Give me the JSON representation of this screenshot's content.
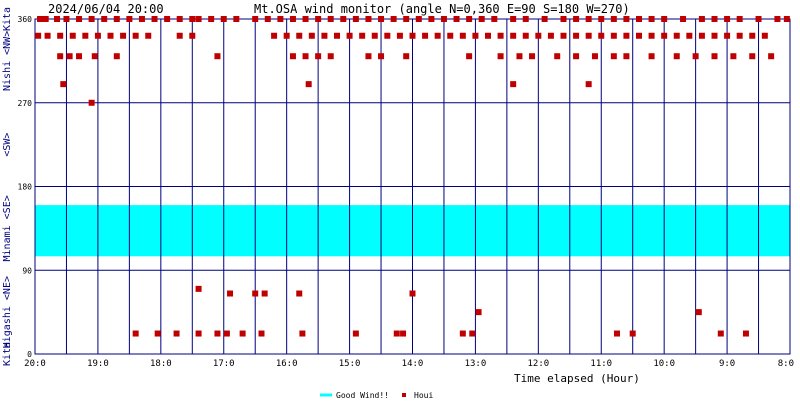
{
  "chart_data": {
    "type": "scatter",
    "header_date": "2024/06/04 20:00",
    "title": "Mt.OSA wind monitor (angle N=0,360 E=90 S=180 W=270)",
    "xlabel": "Time elapsed (Hour)",
    "x_ticks": [
      "20:0",
      "19:0",
      "18:0",
      "17:0",
      "16:0",
      "15:0",
      "14:0",
      "13:0",
      "12:0",
      "11:0",
      "10:0",
      "9:0",
      "8:0"
    ],
    "y_ticks": [
      0,
      90,
      180,
      270,
      360
    ],
    "ylim": [
      0,
      360
    ],
    "xlim_hours_elapsed": [
      0,
      12
    ],
    "y_axis_labels": [
      {
        "text": "Kita",
        "at": 360
      },
      {
        "text": "Nishi <NW>",
        "at": 315
      },
      {
        "text": "<SW>",
        "at": 225
      },
      {
        "text": "Minami <SE>",
        "at": 135
      },
      {
        "text": "Higashi <NE>",
        "at": 45
      },
      {
        "text": "Kita",
        "at": 0
      }
    ],
    "good_wind": {
      "name": "Good Wind!!",
      "from_deg": 105,
      "to_deg": 160,
      "color": "#00ffff"
    },
    "series": [
      {
        "name": "Houi",
        "color": "#c00000",
        "points": [
          [
            0.08,
            360
          ],
          [
            0.17,
            360
          ],
          [
            0.35,
            360
          ],
          [
            0.5,
            360
          ],
          [
            0.7,
            360
          ],
          [
            0.9,
            360
          ],
          [
            1.1,
            360
          ],
          [
            1.3,
            360
          ],
          [
            1.5,
            360
          ],
          [
            1.7,
            360
          ],
          [
            1.9,
            360
          ],
          [
            2.1,
            360
          ],
          [
            2.3,
            360
          ],
          [
            2.5,
            360
          ],
          [
            2.6,
            360
          ],
          [
            2.8,
            360
          ],
          [
            3.0,
            360
          ],
          [
            3.2,
            360
          ],
          [
            3.5,
            360
          ],
          [
            3.7,
            360
          ],
          [
            3.9,
            360
          ],
          [
            4.1,
            360
          ],
          [
            4.3,
            360
          ],
          [
            4.5,
            360
          ],
          [
            4.7,
            360
          ],
          [
            4.9,
            360
          ],
          [
            5.1,
            360
          ],
          [
            5.3,
            360
          ],
          [
            5.5,
            360
          ],
          [
            5.7,
            360
          ],
          [
            5.9,
            360
          ],
          [
            6.1,
            360
          ],
          [
            6.3,
            360
          ],
          [
            6.5,
            360
          ],
          [
            6.7,
            360
          ],
          [
            6.9,
            360
          ],
          [
            7.1,
            360
          ],
          [
            7.3,
            360
          ],
          [
            7.6,
            360
          ],
          [
            7.8,
            360
          ],
          [
            8.1,
            360
          ],
          [
            8.4,
            360
          ],
          [
            8.6,
            360
          ],
          [
            8.8,
            360
          ],
          [
            9.0,
            360
          ],
          [
            9.2,
            360
          ],
          [
            9.4,
            360
          ],
          [
            9.6,
            360
          ],
          [
            9.8,
            360
          ],
          [
            10.0,
            360
          ],
          [
            10.3,
            360
          ],
          [
            10.6,
            360
          ],
          [
            10.8,
            360
          ],
          [
            11.0,
            360
          ],
          [
            11.2,
            360
          ],
          [
            11.5,
            360
          ],
          [
            11.8,
            360
          ],
          [
            11.95,
            360
          ],
          [
            0.05,
            342
          ],
          [
            0.2,
            342
          ],
          [
            0.4,
            342
          ],
          [
            0.6,
            342
          ],
          [
            0.8,
            342
          ],
          [
            1.0,
            342
          ],
          [
            1.2,
            342
          ],
          [
            1.4,
            342
          ],
          [
            1.6,
            342
          ],
          [
            1.8,
            342
          ],
          [
            2.3,
            342
          ],
          [
            2.5,
            342
          ],
          [
            3.8,
            342
          ],
          [
            4.0,
            342
          ],
          [
            4.2,
            342
          ],
          [
            4.4,
            342
          ],
          [
            4.6,
            342
          ],
          [
            4.8,
            342
          ],
          [
            5.0,
            342
          ],
          [
            5.2,
            342
          ],
          [
            5.4,
            342
          ],
          [
            5.6,
            342
          ],
          [
            5.8,
            342
          ],
          [
            6.0,
            342
          ],
          [
            6.2,
            342
          ],
          [
            6.4,
            342
          ],
          [
            6.6,
            342
          ],
          [
            6.8,
            342
          ],
          [
            7.0,
            342
          ],
          [
            7.2,
            342
          ],
          [
            7.4,
            342
          ],
          [
            7.6,
            342
          ],
          [
            7.8,
            342
          ],
          [
            8.0,
            342
          ],
          [
            8.2,
            342
          ],
          [
            8.4,
            342
          ],
          [
            8.6,
            342
          ],
          [
            8.8,
            342
          ],
          [
            9.0,
            342
          ],
          [
            9.2,
            342
          ],
          [
            9.4,
            342
          ],
          [
            9.6,
            342
          ],
          [
            9.8,
            342
          ],
          [
            10.0,
            342
          ],
          [
            10.2,
            342
          ],
          [
            10.4,
            342
          ],
          [
            10.6,
            342
          ],
          [
            10.8,
            342
          ],
          [
            11.0,
            342
          ],
          [
            11.2,
            342
          ],
          [
            11.4,
            342
          ],
          [
            11.6,
            342
          ],
          [
            0.4,
            320
          ],
          [
            0.55,
            320
          ],
          [
            0.7,
            320
          ],
          [
            0.95,
            320
          ],
          [
            1.3,
            320
          ],
          [
            2.9,
            320
          ],
          [
            4.1,
            320
          ],
          [
            4.3,
            320
          ],
          [
            4.5,
            320
          ],
          [
            4.7,
            320
          ],
          [
            5.3,
            320
          ],
          [
            5.5,
            320
          ],
          [
            5.9,
            320
          ],
          [
            6.9,
            320
          ],
          [
            7.4,
            320
          ],
          [
            7.7,
            320
          ],
          [
            7.9,
            320
          ],
          [
            8.3,
            320
          ],
          [
            8.6,
            320
          ],
          [
            8.9,
            320
          ],
          [
            9.2,
            320
          ],
          [
            9.4,
            320
          ],
          [
            9.8,
            320
          ],
          [
            10.2,
            320
          ],
          [
            10.5,
            320
          ],
          [
            10.8,
            320
          ],
          [
            11.1,
            320
          ],
          [
            11.4,
            320
          ],
          [
            11.7,
            320
          ],
          [
            0.45,
            290
          ],
          [
            4.35,
            290
          ],
          [
            7.6,
            290
          ],
          [
            8.8,
            290
          ],
          [
            0.9,
            270
          ],
          [
            2.6,
            70
          ],
          [
            3.1,
            65
          ],
          [
            3.5,
            65
          ],
          [
            3.65,
            65
          ],
          [
            4.2,
            65
          ],
          [
            6.0,
            65
          ],
          [
            7.05,
            45
          ],
          [
            10.55,
            45
          ],
          [
            1.6,
            22
          ],
          [
            1.95,
            22
          ],
          [
            2.25,
            22
          ],
          [
            2.6,
            22
          ],
          [
            2.9,
            22
          ],
          [
            3.05,
            22
          ],
          [
            3.3,
            22
          ],
          [
            3.6,
            22
          ],
          [
            4.25,
            22
          ],
          [
            5.1,
            22
          ],
          [
            5.75,
            22
          ],
          [
            5.85,
            22
          ],
          [
            6.8,
            22
          ],
          [
            6.95,
            22
          ],
          [
            9.25,
            22
          ],
          [
            9.5,
            22
          ],
          [
            10.9,
            22
          ],
          [
            11.3,
            22
          ]
        ]
      }
    ],
    "legend": [
      {
        "name": "Good Wind!!",
        "color": "#00ffff"
      },
      {
        "name": "Houi",
        "color": "#c00000"
      }
    ],
    "legend_placement": "bottom-center",
    "grid": true
  }
}
